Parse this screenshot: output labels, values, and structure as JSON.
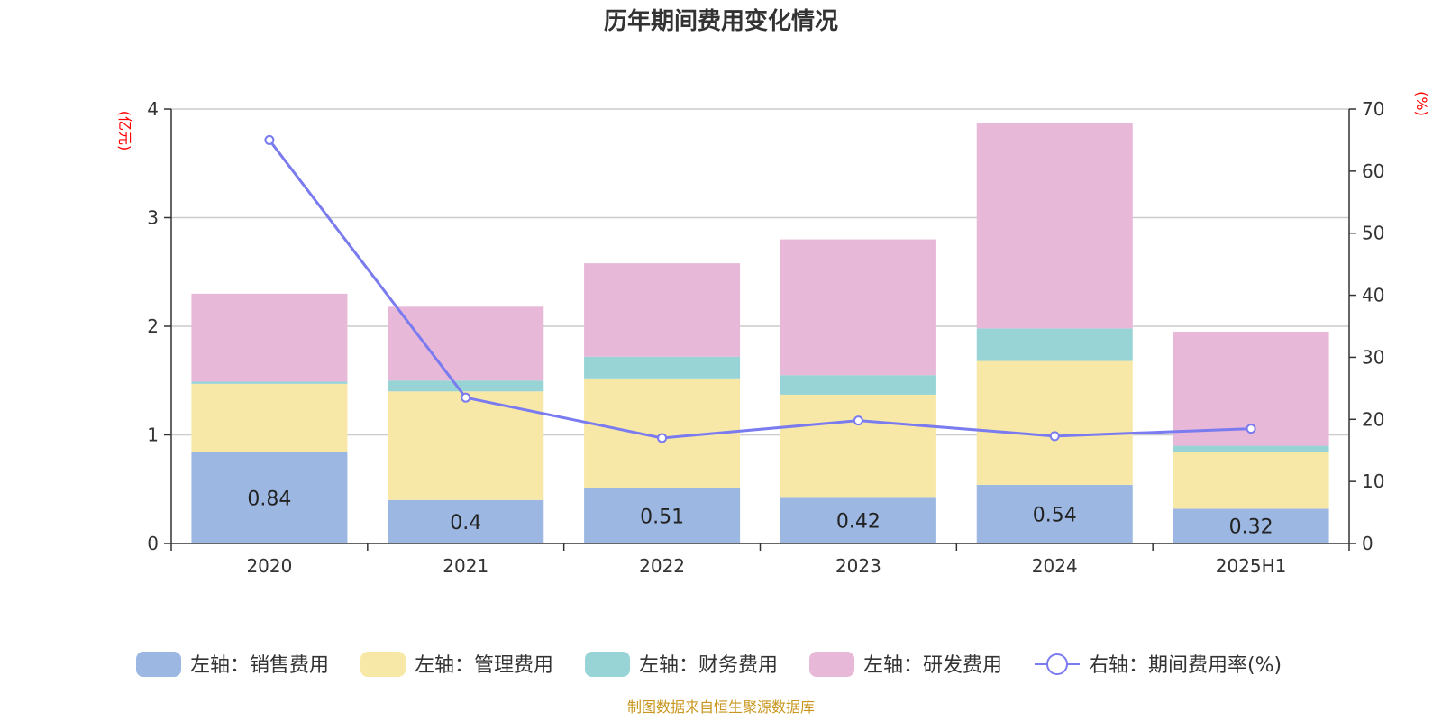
{
  "chart_data": {
    "type": "bar",
    "title": "历年期间费用变化情况",
    "categories": [
      "2020",
      "2021",
      "2022",
      "2023",
      "2024",
      "2025H1"
    ],
    "left_axis": {
      "unit": "(亿元)",
      "ylim": [
        0,
        4
      ],
      "ticks": [
        "0",
        "1",
        "2",
        "3",
        "4"
      ]
    },
    "right_axis": {
      "unit": "(%)",
      "ylim": [
        0,
        70
      ],
      "ticks": [
        "0",
        "10",
        "20",
        "30",
        "40",
        "50",
        "60",
        "70"
      ]
    },
    "stacked": true,
    "series": [
      {
        "name": "左轴：销售费用",
        "axis": "left",
        "color": "#9cb8e2",
        "values": [
          0.84,
          0.4,
          0.51,
          0.42,
          0.54,
          0.32
        ],
        "labels": [
          "0.84",
          "0.4",
          "0.51",
          "0.42",
          "0.54",
          "0.32"
        ]
      },
      {
        "name": "左轴：管理费用",
        "axis": "left",
        "color": "#f8e8a8",
        "values": [
          0.63,
          1.0,
          1.01,
          0.95,
          1.14,
          0.52
        ]
      },
      {
        "name": "左轴：财务费用",
        "axis": "left",
        "color": "#98d4d6",
        "values": [
          0.02,
          0.1,
          0.2,
          0.18,
          0.3,
          0.06
        ]
      },
      {
        "name": "左轴：研发费用",
        "axis": "left",
        "color": "#e8b8d8",
        "values": [
          0.81,
          0.68,
          0.86,
          1.25,
          1.89,
          1.05
        ]
      },
      {
        "name": "右轴：期间费用率(%)",
        "axis": "right",
        "type": "line",
        "color": "#7b7bf0",
        "values": [
          65,
          23.5,
          17,
          19.8,
          17.3,
          18.5
        ]
      }
    ],
    "grid": true,
    "legend_position": "bottom"
  },
  "source_note": "制图数据来自恒生聚源数据库"
}
